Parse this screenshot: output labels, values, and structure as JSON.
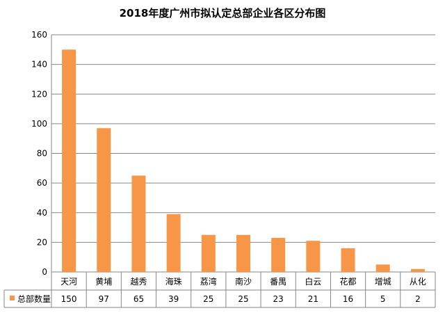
{
  "chart_data": {
    "type": "bar",
    "title": "2018年度广州市拟认定总部企业各区分布图",
    "categories": [
      "天河",
      "黄埔",
      "越秀",
      "海珠",
      "荔湾",
      "南沙",
      "番禺",
      "白云",
      "花都",
      "增城",
      "从化"
    ],
    "series": [
      {
        "name": "总部数量",
        "values": [
          150,
          97,
          65,
          39,
          25,
          25,
          23,
          21,
          16,
          5,
          2
        ]
      }
    ],
    "yticks": [
      "0",
      "20",
      "40",
      "60",
      "80",
      "100",
      "120",
      "140",
      "160"
    ],
    "ylim": [
      0,
      160
    ],
    "grid": true,
    "data_table": true,
    "bar_color": "#F79646",
    "grid_color": "#868686"
  }
}
